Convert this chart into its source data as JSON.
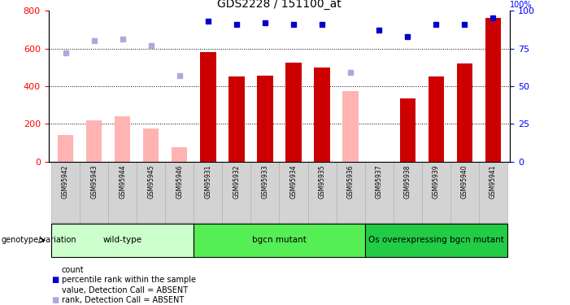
{
  "title": "GDS2228 / 151100_at",
  "samples": [
    "GSM95942",
    "GSM95943",
    "GSM95944",
    "GSM95945",
    "GSM95946",
    "GSM95931",
    "GSM95932",
    "GSM95933",
    "GSM95934",
    "GSM95935",
    "GSM95936",
    "GSM95937",
    "GSM95938",
    "GSM95939",
    "GSM95940",
    "GSM95941"
  ],
  "count_present": [
    null,
    null,
    null,
    null,
    null,
    580,
    450,
    455,
    525,
    500,
    null,
    null,
    335,
    450,
    520,
    760
  ],
  "count_absent": [
    140,
    220,
    240,
    175,
    75,
    null,
    null,
    null,
    null,
    null,
    375,
    null,
    null,
    null,
    null,
    null
  ],
  "rank_present": [
    null,
    null,
    null,
    null,
    null,
    93,
    91,
    92,
    91,
    91,
    null,
    87,
    83,
    91,
    91,
    95
  ],
  "rank_absent": [
    72,
    80,
    81,
    77,
    57,
    null,
    null,
    null,
    null,
    null,
    59,
    null,
    null,
    null,
    null,
    null
  ],
  "groups": [
    {
      "label": "wild-type",
      "start": 0,
      "end": 5,
      "color": "#ccffcc"
    },
    {
      "label": "bgcn mutant",
      "start": 5,
      "end": 11,
      "color": "#55ee55"
    },
    {
      "label": "Os overexpressing bgcn mutant",
      "start": 11,
      "end": 16,
      "color": "#22cc44"
    }
  ],
  "ylim_left": [
    0,
    800
  ],
  "ylim_right": [
    0,
    100
  ],
  "yticks_left": [
    0,
    200,
    400,
    600,
    800
  ],
  "yticks_right": [
    0,
    25,
    50,
    75,
    100
  ],
  "color_bar_present": "#cc0000",
  "color_bar_absent": "#ffb3b3",
  "color_dot_present": "#0000cc",
  "color_dot_absent": "#aaaadd",
  "bar_width": 0.55,
  "hgrid_lines": [
    200,
    400,
    600
  ],
  "legend": [
    {
      "label": "count",
      "color": "#cc0000",
      "kind": "bar"
    },
    {
      "label": "percentile rank within the sample",
      "color": "#0000cc",
      "kind": "dot"
    },
    {
      "label": "value, Detection Call = ABSENT",
      "color": "#ffb3b3",
      "kind": "bar"
    },
    {
      "label": "rank, Detection Call = ABSENT",
      "color": "#aaaadd",
      "kind": "dot"
    }
  ]
}
